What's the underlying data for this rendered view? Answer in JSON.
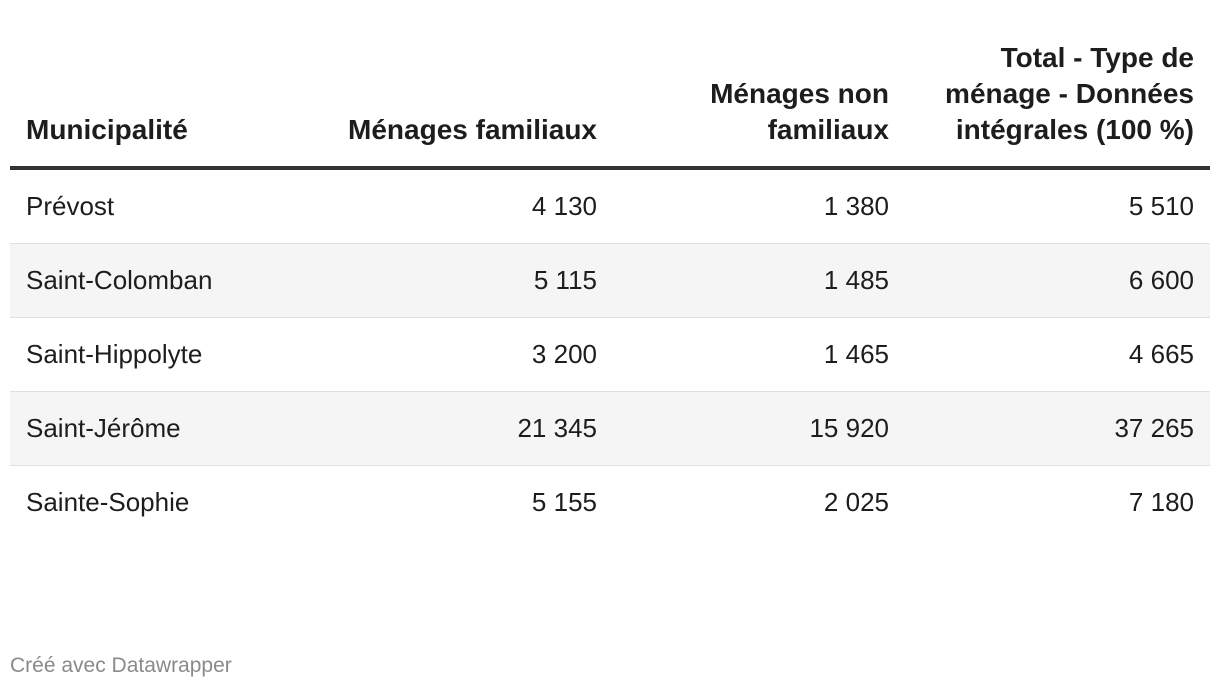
{
  "chart_data": {
    "type": "table",
    "columns": [
      "Municipalité",
      "Ménages familiaux",
      "Ménages non familiaux",
      "Total - Type de ménage - Données intégrales (100 %)"
    ],
    "rows": [
      [
        "Prévost",
        "4 130",
        "1 380",
        "5 510"
      ],
      [
        "Saint-Colomban",
        "5 115",
        "1 485",
        "6 600"
      ],
      [
        "Saint-Hippolyte",
        "3 200",
        "1 465",
        "4 665"
      ],
      [
        "Saint-Jérôme",
        "21 345",
        "15 920",
        "37 265"
      ],
      [
        "Sainte-Sophie",
        "5 155",
        "2 025",
        "7 180"
      ]
    ],
    "values": [
      {
        "municipalite": "Prévost",
        "familiaux": 4130,
        "non_familiaux": 1380,
        "total": 5510
      },
      {
        "municipalite": "Saint-Colomban",
        "familiaux": 5115,
        "non_familiaux": 1485,
        "total": 6600
      },
      {
        "municipalite": "Saint-Hippolyte",
        "familiaux": 3200,
        "non_familiaux": 1465,
        "total": 4665
      },
      {
        "municipalite": "Saint-Jérôme",
        "familiaux": 21345,
        "non_familiaux": 15920,
        "total": 37265
      },
      {
        "municipalite": "Sainte-Sophie",
        "familiaux": 5155,
        "non_familiaux": 2025,
        "total": 7180
      }
    ]
  },
  "footer": {
    "credit": "Créé avec Datawrapper"
  },
  "colors": {
    "header_rule": "#333333",
    "stripe": "#f5f5f5",
    "row_divider": "#e0e0e0",
    "footer_text": "#8a8a8a"
  }
}
